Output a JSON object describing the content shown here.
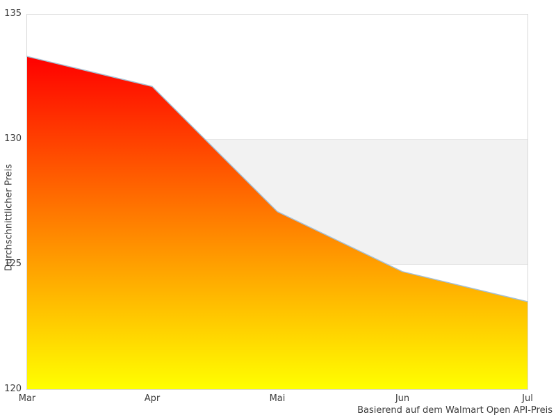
{
  "chart_data": {
    "type": "area",
    "categories": [
      "Mar",
      "Apr",
      "Mai",
      "Jun",
      "Jul"
    ],
    "values": [
      133.3,
      132.1,
      127.1,
      124.7,
      123.5
    ],
    "title": "",
    "xlabel": "",
    "ylabel": "Durchschnittlicher Preis",
    "caption": "Basierend auf dem Walmart Open API-Preis",
    "ylim": [
      120,
      135
    ],
    "yticks": [
      135,
      130,
      125,
      120
    ],
    "highlight_band": [
      125,
      130
    ],
    "grid": "off",
    "legend": "none",
    "colors": {
      "area_gradient_top": "#ff0000",
      "area_gradient_bottom": "#ffff00",
      "line": "#a6c0d4",
      "band_fill": "#f2f2f2",
      "band_edge": "#e5e5e5",
      "plot_border": "#d9d9d9",
      "text": "#3c3c3c"
    }
  }
}
